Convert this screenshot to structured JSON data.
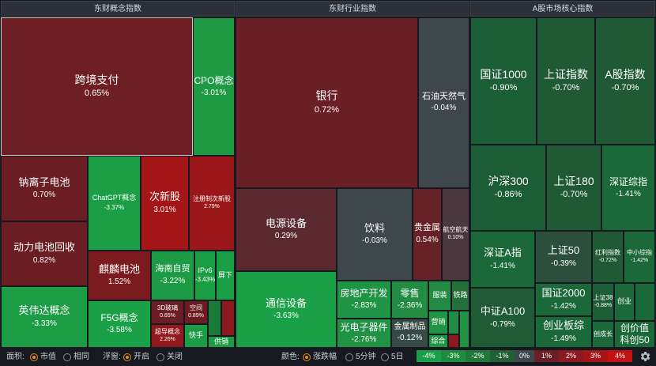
{
  "panels": [
    {
      "title": "东财概念指数"
    },
    {
      "title": "东财行业指数"
    },
    {
      "title": "A股市场核心指数"
    }
  ],
  "concept_tiles": [
    {
      "name": "跨境支付",
      "change": "0.65%",
      "color": "#6e1f24"
    },
    {
      "name": "CPO概念",
      "change": "-3.01%",
      "color": "#1e9a45"
    },
    {
      "name": "钠离子电池",
      "change": "0.70%",
      "color": "#6a1e22"
    },
    {
      "name": "ChatGPT概念",
      "change": "-3.37%",
      "color": "#1b9e45"
    },
    {
      "name": "次新股",
      "change": "3.01%",
      "color": "#a31516"
    },
    {
      "name": "注册制次新股",
      "change": "2.79%",
      "color": "#9b1719"
    },
    {
      "name": "动力电池回收",
      "change": "0.82%",
      "color": "#6b1d21"
    },
    {
      "name": "麒麟电池",
      "change": "1.52%",
      "color": "#7b1b1f"
    },
    {
      "name": "海南自贸",
      "change": "-3.22%",
      "color": "#1d9a44"
    },
    {
      "name": "IPv6",
      "change": "-3.43%",
      "color": "#1a9e44"
    },
    {
      "name": "屏下",
      "change": "",
      "color": "#1b9f46"
    },
    {
      "name": "英伟达概念",
      "change": "-3.33%",
      "color": "#1c9c45"
    },
    {
      "name": "F5G概念",
      "change": "-3.58%",
      "color": "#1aa046"
    },
    {
      "name": "3D玻璃",
      "change": "0.65%",
      "color": "#6b1f24"
    },
    {
      "name": "空间",
      "change": "0.89%",
      "color": "#6c1c21"
    },
    {
      "name": "超导概念",
      "change": "2.26%",
      "color": "#91181c"
    },
    {
      "name": "快手",
      "change": "",
      "color": "#1a9d45"
    },
    {
      "name": "",
      "change": "",
      "color": "#1a7a3a"
    },
    {
      "name": "",
      "change": "",
      "color": "#8a1a1e"
    },
    {
      "name": "供销",
      "change": "",
      "color": "#1c9a44"
    }
  ],
  "industry_tiles": [
    {
      "name": "银行",
      "change": "0.72%",
      "color": "#6a1f25"
    },
    {
      "name": "石油天然气",
      "change": "-0.04%",
      "color": "#3e474c"
    },
    {
      "name": "电源设备",
      "change": "0.29%",
      "color": "#5a2a2f"
    },
    {
      "name": "饮料",
      "change": "-0.03%",
      "color": "#3e474c"
    },
    {
      "name": "贵金属",
      "change": "0.54%",
      "color": "#662227"
    },
    {
      "name": "航空航天",
      "change": "0.10%",
      "color": "#4a3a3f"
    },
    {
      "name": "通信设备",
      "change": "-3.63%",
      "color": "#1aa046"
    },
    {
      "name": "房地产开发",
      "change": "-2.83%",
      "color": "#1f9444"
    },
    {
      "name": "零售",
      "change": "-2.36%",
      "color": "#218c42"
    },
    {
      "name": "服装",
      "change": "",
      "color": "#228a42"
    },
    {
      "name": "铁路",
      "change": "",
      "color": "#246e3a"
    },
    {
      "name": "光电子器件",
      "change": "-2.76%",
      "color": "#1f9343"
    },
    {
      "name": "金属制品",
      "change": "-0.12%",
      "color": "#374a45"
    },
    {
      "name": "营销",
      "change": "",
      "color": "#1f9544"
    },
    {
      "name": "综合",
      "change": "",
      "color": "#1f9444"
    },
    {
      "name": "",
      "change": "",
      "color": "#8a1a1e"
    },
    {
      "name": "",
      "change": "",
      "color": "#1f9444"
    },
    {
      "name": "",
      "change": "",
      "color": "#228a42"
    }
  ],
  "core_tiles": [
    {
      "name": "国证1000",
      "change": "-0.90%",
      "color": "#1c5e36"
    },
    {
      "name": "上证指数",
      "change": "-0.70%",
      "color": "#205a35"
    },
    {
      "name": "A股指数",
      "change": "-0.70%",
      "color": "#205a35"
    },
    {
      "name": "沪深300",
      "change": "-0.86%",
      "color": "#1d5d36"
    },
    {
      "name": "上证180",
      "change": "-0.70%",
      "color": "#205a35"
    },
    {
      "name": "深证综指",
      "change": "-1.41%",
      "color": "#1b6839"
    },
    {
      "name": "深证A指",
      "change": "-1.41%",
      "color": "#1b6839"
    },
    {
      "name": "上证50",
      "change": "-0.39%",
      "color": "#2b4f3c"
    },
    {
      "name": "红利指数",
      "change": "-0.72%",
      "color": "#205a35"
    },
    {
      "name": "中小综指",
      "change": "-1.42%",
      "color": "#1b6839"
    },
    {
      "name": "中证A100",
      "change": "-0.79%",
      "color": "#1e5b36"
    },
    {
      "name": "国证2000",
      "change": "-1.42%",
      "color": "#1b6839"
    },
    {
      "name": "创业板综",
      "change": "-1.49%",
      "color": "#1b6939"
    },
    {
      "name": "上证38",
      "change": "-0.88%",
      "color": "#1d5d36"
    },
    {
      "name": "创业",
      "change": "",
      "color": "#1b6939"
    },
    {
      "name": "创成长",
      "change": "",
      "color": "#1b6939"
    },
    {
      "name": "创价值",
      "change": "",
      "color": "#1b6939"
    },
    {
      "name": "科创50",
      "change": "",
      "color": "#1b6939"
    },
    {
      "name": "",
      "change": "",
      "color": "#1b6939"
    }
  ],
  "bottom_bar": {
    "area_label": "面积:",
    "area_options": [
      "市值",
      "相同"
    ],
    "area_selected": "市值",
    "float_label": "浮窗:",
    "float_options": [
      "开启",
      "关闭"
    ],
    "float_selected": "开启",
    "color_label": "颜色:",
    "color_options": [
      "涨跌幅",
      "5分钟",
      "5日"
    ],
    "color_selected": "涨跌幅"
  },
  "legend": [
    {
      "label": "-4%",
      "color": "#1aa046"
    },
    {
      "label": "-3%",
      "color": "#1d8c3f"
    },
    {
      "label": "-2%",
      "color": "#1f7a3a"
    },
    {
      "label": "-1%",
      "color": "#215f35"
    },
    {
      "label": "0%",
      "color": "#3e474c"
    },
    {
      "label": "1%",
      "color": "#6a1f25"
    },
    {
      "label": "2%",
      "color": "#8a1a1e"
    },
    {
      "label": "3%",
      "color": "#a31516"
    },
    {
      "label": "4%",
      "color": "#c41214"
    }
  ],
  "icons": {
    "settings": "gear-icon"
  }
}
